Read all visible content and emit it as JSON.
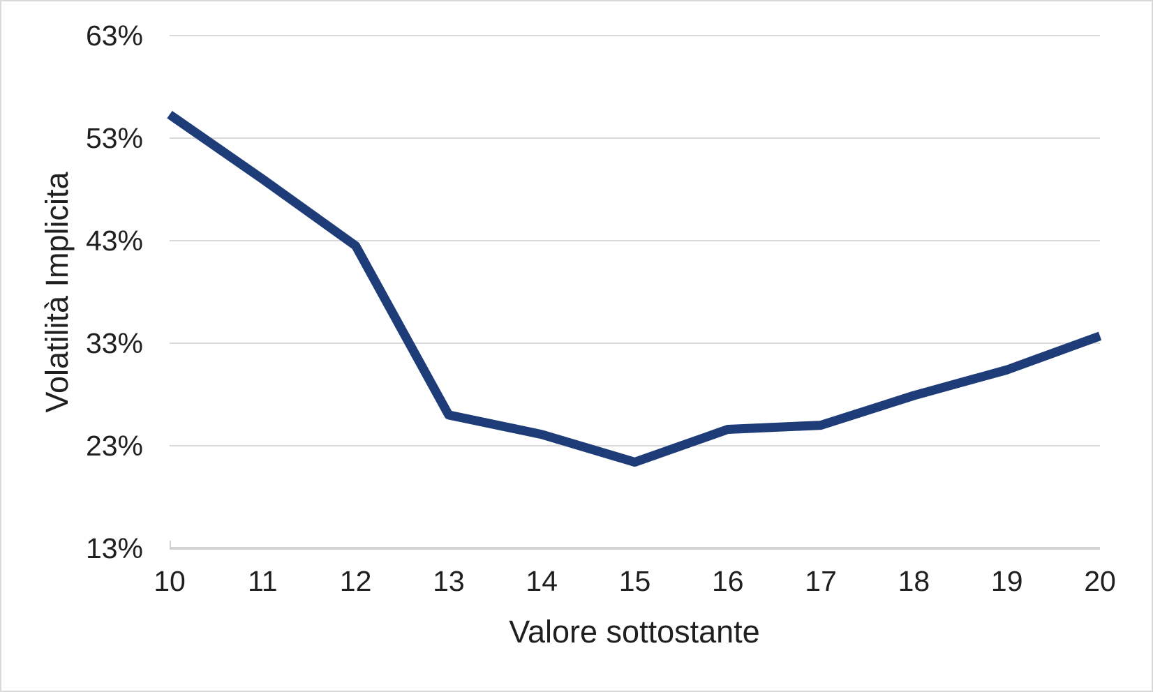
{
  "window": {
    "background": "#ffffff",
    "border_color": "#d9d9d9"
  },
  "chart_data": {
    "type": "line",
    "title": "",
    "xlabel": "Valore sottostante",
    "ylabel": "Volatilità Implicita",
    "x": [
      10,
      11,
      12,
      13,
      14,
      15,
      16,
      17,
      18,
      19,
      20
    ],
    "series": [
      {
        "name": "Volatilità implicita",
        "values": [
          55.3,
          49.0,
          42.5,
          26.0,
          24.1,
          21.4,
          24.6,
          25.0,
          27.9,
          30.4,
          33.7
        ]
      }
    ],
    "x_tick_labels": [
      "10",
      "11",
      "12",
      "13",
      "14",
      "15",
      "16",
      "17",
      "18",
      "19",
      "20"
    ],
    "y_ticks": [
      13,
      23,
      33,
      43,
      53,
      63
    ],
    "y_tick_labels": [
      "13%",
      "23%",
      "33%",
      "43%",
      "53%",
      "63%"
    ],
    "xlim": [
      10,
      20
    ],
    "ylim": [
      13,
      63
    ],
    "grid": "horizontal",
    "legend": "none",
    "colors": {
      "line": "#1e3c78",
      "gridline": "#d9d9d9",
      "axis_line": "#d2d2d2",
      "text": "#1f1f1f"
    }
  }
}
